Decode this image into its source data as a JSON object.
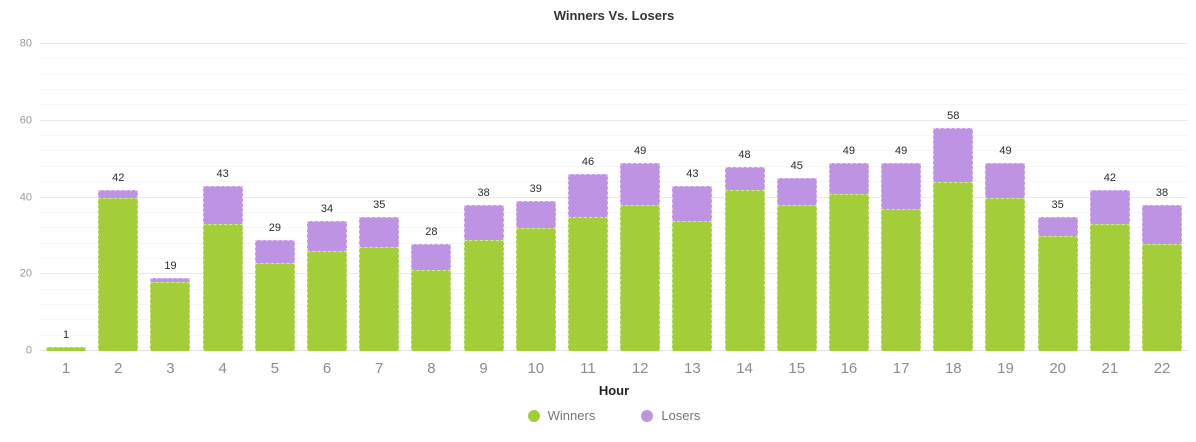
{
  "title": "Winners Vs. Losers",
  "colors": {
    "winners": "#a4cd3a",
    "losers": "#bf93e3",
    "grid_major": "#eaeaea",
    "grid_minor": "#f6f6f6",
    "axis_text": "#8b8b8b",
    "value_text": "#2b2b2b"
  },
  "chart_data": {
    "type": "bar",
    "stacked": true,
    "title": "Winners Vs. Losers",
    "xlabel": "Hour",
    "ylabel": "",
    "categories": [
      1,
      2,
      3,
      4,
      5,
      6,
      7,
      8,
      9,
      10,
      11,
      12,
      13,
      14,
      15,
      16,
      17,
      18,
      19,
      20,
      21,
      22
    ],
    "series": [
      {
        "name": "Winners",
        "color": "#a4cd3a",
        "values": [
          1,
          40,
          18,
          33,
          23,
          26,
          27,
          21,
          29,
          32,
          35,
          38,
          34,
          42,
          38,
          41,
          37,
          44,
          40,
          30,
          33,
          28
        ]
      },
      {
        "name": "Losers",
        "color": "#bf93e3",
        "values": [
          0,
          2,
          1,
          10,
          6,
          8,
          8,
          7,
          9,
          7,
          11,
          11,
          9,
          6,
          7,
          8,
          12,
          14,
          9,
          5,
          9,
          10
        ]
      }
    ],
    "totals": [
      1,
      42,
      19,
      43,
      29,
      34,
      35,
      28,
      38,
      39,
      46,
      49,
      43,
      48,
      45,
      49,
      49,
      58,
      49,
      35,
      42,
      38
    ],
    "yticks": [
      0,
      20,
      40,
      60,
      80
    ],
    "ylim": [
      0,
      80
    ],
    "minor_grid_step": 4,
    "grid": true,
    "legend_position": "bottom"
  },
  "legend": {
    "items": [
      {
        "label": "Winners",
        "color": "#a4cd3a"
      },
      {
        "label": "Losers",
        "color": "#bf93e3"
      }
    ]
  }
}
